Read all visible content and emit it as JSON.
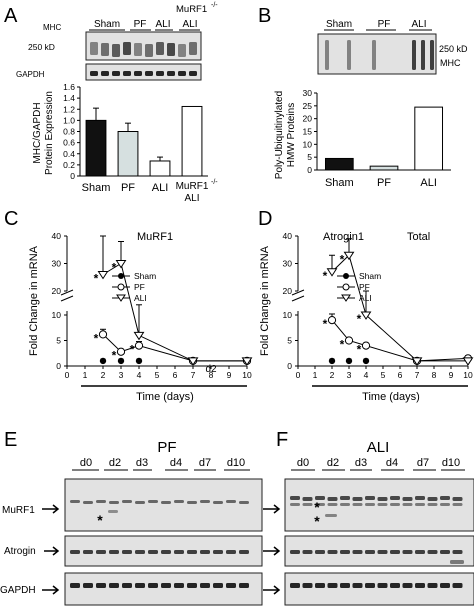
{
  "panels": {
    "A": {
      "letter": "A",
      "blot_labels": {
        "mhc": "MHC",
        "kd": "250 kD",
        "gapdh": "GAPDH"
      },
      "lane_groups": [
        "Sham",
        "PF",
        "ALI"
      ],
      "murf_header": "MuRF1",
      "murf_sup": "-/-",
      "murf_lane_sub": "ALI"
    },
    "B": {
      "letter": "B",
      "lane_groups": [
        "Sham",
        "PF",
        "ALI"
      ],
      "kd": "250 kD",
      "mhc": "MHC"
    },
    "C": {
      "letter": "C",
      "inset_title": "MuRF1"
    },
    "D": {
      "letter": "D",
      "inset_title": "Atrogin1",
      "inset_title2": "Total"
    },
    "E": {
      "letter": "E",
      "title": "PF",
      "lanes": [
        "d0",
        "d2",
        "d3",
        "d4",
        "d7",
        "d10"
      ],
      "rows": [
        "MuRF1",
        "Atrogin",
        "GAPDH"
      ]
    },
    "F": {
      "letter": "F",
      "title": "ALI",
      "lanes": [
        "d0",
        "d2",
        "d3",
        "d4",
        "d7",
        "d10"
      ]
    }
  },
  "chart_data": [
    {
      "id": "A",
      "type": "bar",
      "categories": [
        "Sham",
        "PF",
        "ALI",
        "MuRF1-/- ALI"
      ],
      "cat_labels": [
        "Sham",
        "PF",
        "ALI",
        "MuRF1",
        "ALI"
      ],
      "values": [
        1.0,
        0.8,
        0.27,
        1.25
      ],
      "errors": [
        0.22,
        0.15,
        0.07,
        0
      ],
      "colors": [
        "#111111",
        "#d6e0e0",
        "#ffffff",
        "#ffffff"
      ],
      "ylabel": "MHC/GAPDH Protein Expression",
      "ylabel_lines": [
        "MHC/GAPDH",
        "Protein Expression"
      ],
      "ylim": [
        0,
        1.6
      ],
      "yticks": [
        0,
        0.2,
        0.4,
        0.6,
        0.8,
        1.0,
        1.2,
        1.4,
        1.6
      ],
      "ytick_labels": [
        "0",
        "0.2",
        "0.4",
        "0.6",
        "0.8",
        "1.0",
        "1.2",
        "1.4",
        "1.6"
      ]
    },
    {
      "id": "B",
      "type": "bar",
      "categories": [
        "Sham",
        "PF",
        "ALI"
      ],
      "values": [
        4.5,
        1.5,
        24.5
      ],
      "colors": [
        "#111111",
        "#d6e0e0",
        "#ffffff"
      ],
      "ylabel": "Poly-Ubiquitinylated HMW Proteins",
      "ylabel_lines": [
        "Poly-Ubiquitinylated",
        "HMW Proteins"
      ],
      "ylim": [
        0,
        30
      ],
      "yticks": [
        0,
        5,
        10,
        15,
        20,
        25,
        30
      ],
      "ytick_labels": [
        "0",
        "5",
        "10",
        "15",
        "20",
        "25",
        "30"
      ]
    },
    {
      "id": "C",
      "type": "line",
      "title": "MuRF1",
      "xlabel": "Time (days)",
      "ylabel": "Fold Change in mRNA",
      "xticks": [
        0,
        1,
        2,
        3,
        4,
        5,
        6,
        7,
        8,
        9,
        10
      ],
      "xtick_labels": [
        "0",
        "1",
        "2",
        "3",
        "4",
        "5",
        "6",
        "7",
        "8",
        "9",
        "10"
      ],
      "ytick_labels_low": [
        "0",
        "5",
        "10"
      ],
      "ytick_labels_high": [
        "20",
        "30",
        "40"
      ],
      "annotation": "d2",
      "series": [
        {
          "name": "Sham",
          "marker": "circle-filled",
          "x": [
            2,
            3,
            4
          ],
          "y": [
            1,
            1,
            1
          ],
          "err": [
            0,
            0,
            0
          ]
        },
        {
          "name": "PF",
          "marker": "circle-open",
          "x": [
            2,
            3,
            4,
            7,
            10
          ],
          "y": [
            6.2,
            2.8,
            4.0,
            1.0,
            1.0
          ],
          "err": [
            1.0,
            0.5,
            0.8,
            0.2,
            0.2
          ]
        },
        {
          "name": "ALI",
          "marker": "triangle-open",
          "x": [
            2,
            3,
            4,
            7,
            10
          ],
          "y": [
            26,
            30,
            6,
            1,
            1
          ],
          "err": [
            14,
            8,
            6,
            0,
            0
          ]
        }
      ],
      "stars": [
        [
          2,
          26
        ],
        [
          3,
          30
        ],
        [
          2,
          6.2
        ],
        [
          3,
          2.8
        ],
        [
          4,
          4.0
        ]
      ]
    },
    {
      "id": "D",
      "type": "line",
      "title": "Atrogin1",
      "xlabel": "Time (days)",
      "ylabel": "Fold Change in mRNA",
      "xticks": [
        0,
        1,
        2,
        3,
        4,
        5,
        6,
        7,
        8,
        9,
        10
      ],
      "xtick_labels": [
        "0",
        "1",
        "2",
        "3",
        "4",
        "5",
        "6",
        "7",
        "8",
        "9",
        "10"
      ],
      "ytick_labels_low": [
        "0",
        "5",
        "10"
      ],
      "ytick_labels_high": [
        "20",
        "30",
        "40"
      ],
      "series": [
        {
          "name": "Sham",
          "marker": "circle-filled",
          "x": [
            2,
            3,
            4
          ],
          "y": [
            1,
            1,
            1
          ],
          "err": [
            0,
            0,
            0
          ]
        },
        {
          "name": "PF",
          "marker": "circle-open",
          "x": [
            2,
            3,
            4,
            7,
            10
          ],
          "y": [
            9,
            5,
            4,
            1,
            1.5
          ],
          "err": [
            1.2,
            0.5,
            0.5,
            0.3,
            0.5
          ]
        },
        {
          "name": "ALI",
          "marker": "triangle-open",
          "x": [
            2,
            3,
            4,
            7,
            10
          ],
          "y": [
            27,
            33,
            10,
            1,
            1
          ],
          "err": [
            6,
            6,
            10,
            0,
            0
          ]
        }
      ],
      "stars": [
        [
          2,
          27
        ],
        [
          3,
          33
        ],
        [
          4,
          10
        ],
        [
          2,
          9
        ],
        [
          3,
          5
        ],
        [
          4,
          4
        ]
      ]
    }
  ]
}
